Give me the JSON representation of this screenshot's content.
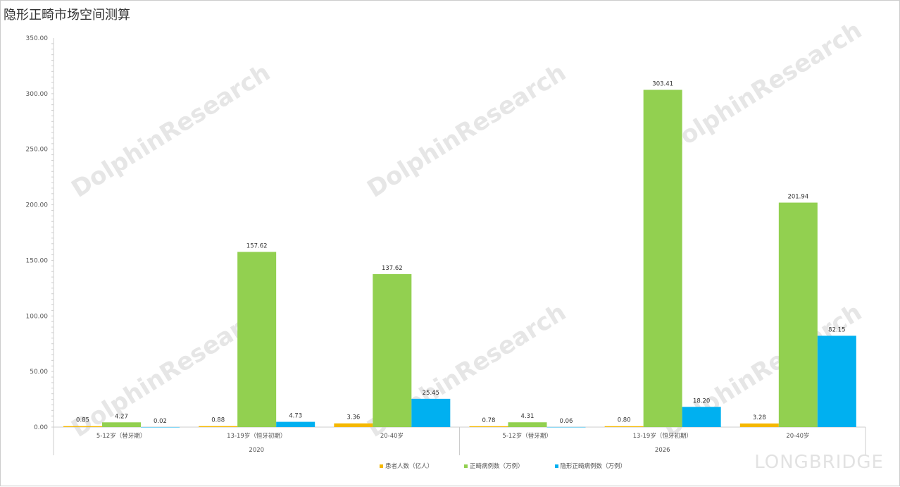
{
  "title": "隐形正畸市场空间测算",
  "brand": "LONGBRIDGE",
  "chart_data": {
    "type": "bar",
    "title": "隐形正畸市场空间测算",
    "groups": [
      "2020",
      "2026"
    ],
    "categories": [
      "5-12岁（替牙期）",
      "13-19岁（恒牙初期）",
      "20-40岁"
    ],
    "ylim": [
      0,
      350
    ],
    "yticks": [
      "0.00",
      "50.00",
      "100.00",
      "150.00",
      "200.00",
      "250.00",
      "300.00",
      "350.00"
    ],
    "grid": false,
    "legend_position": "bottom",
    "series": [
      {
        "name": "患者人数（亿人）",
        "color": "#f5b800",
        "values": [
          [
            0.85,
            0.88,
            3.36
          ],
          [
            0.78,
            0.8,
            3.28
          ]
        ]
      },
      {
        "name": "正畸病例数（万例）",
        "color": "#92d050",
        "values": [
          [
            4.27,
            157.62,
            137.62
          ],
          [
            4.31,
            303.41,
            201.94
          ]
        ]
      },
      {
        "name": "隐形正畸病例数（万例）",
        "color": "#00b0f0",
        "values": [
          [
            0.02,
            4.73,
            25.45
          ],
          [
            0.06,
            18.2,
            82.15
          ]
        ]
      }
    ],
    "labels": [
      [
        [
          "0.85",
          "0.88",
          "3.36"
        ],
        [
          "0.78",
          "0.80",
          "3.28"
        ]
      ],
      [
        [
          "4.27",
          "157.62",
          "137.62"
        ],
        [
          "4.31",
          "303.41",
          "201.94"
        ]
      ],
      [
        [
          "0.02",
          "4.73",
          "25.45"
        ],
        [
          "0.06",
          "18.20",
          "82.15"
        ]
      ]
    ]
  }
}
